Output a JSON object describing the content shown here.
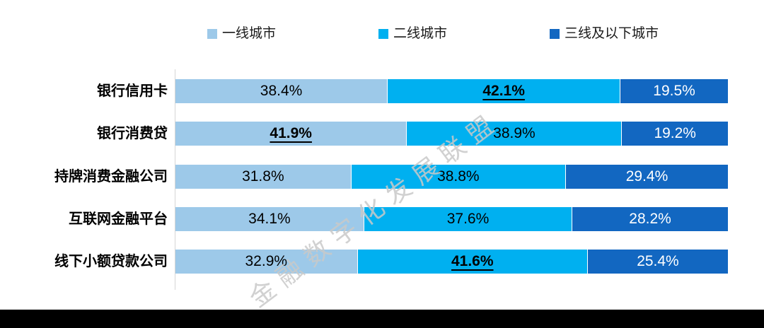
{
  "page": {
    "background": "#ffffff",
    "bottom_bar_color": "#000000",
    "axis_line_color": "#d6d6d6",
    "watermark_color": "#c9c9c9"
  },
  "legend": {
    "items": [
      {
        "label": "一线城市",
        "color": "#9DC9E9"
      },
      {
        "label": "二线城市",
        "color": "#00B0F0"
      },
      {
        "label": "三线及以下城市",
        "color": "#1267C1"
      }
    ]
  },
  "watermark": {
    "text": "金融数字化发展联盟"
  },
  "chart_data": {
    "type": "bar",
    "orientation": "horizontal",
    "stacking": "100%",
    "value_suffix": "%",
    "xlim": [
      0,
      100
    ],
    "grid": false,
    "legend_position": "top",
    "categories": [
      "银行信用卡",
      "银行消费贷",
      "持牌消费金融公司",
      "互联网金融平台",
      "线下小额贷款公司"
    ],
    "series": [
      {
        "name": "一线城市",
        "color": "#9DC9E9",
        "values": [
          38.4,
          41.9,
          31.8,
          34.1,
          32.9
        ]
      },
      {
        "name": "二线城市",
        "color": "#00B0F0",
        "values": [
          42.1,
          38.9,
          38.8,
          37.6,
          41.6
        ]
      },
      {
        "name": "三线及以下城市",
        "color": "#1267C1",
        "values": [
          19.5,
          19.2,
          29.4,
          28.2,
          25.4
        ]
      }
    ],
    "rows": [
      {
        "category": "银行信用卡",
        "segments": [
          {
            "label": "38.4%",
            "value": 38.4,
            "emphasis": false
          },
          {
            "label": "42.1%",
            "value": 42.1,
            "emphasis": true
          },
          {
            "label": "19.5%",
            "value": 19.5,
            "emphasis": false
          }
        ]
      },
      {
        "category": "银行消费贷",
        "segments": [
          {
            "label": "41.9%",
            "value": 41.9,
            "emphasis": true
          },
          {
            "label": "38.9%",
            "value": 38.9,
            "emphasis": false
          },
          {
            "label": "19.2%",
            "value": 19.2,
            "emphasis": false
          }
        ]
      },
      {
        "category": "持牌消费金融公司",
        "segments": [
          {
            "label": "31.8%",
            "value": 31.8,
            "emphasis": false
          },
          {
            "label": "38.8%",
            "value": 38.8,
            "emphasis": false
          },
          {
            "label": "29.4%",
            "value": 29.4,
            "emphasis": false
          }
        ]
      },
      {
        "category": "互联网金融平台",
        "segments": [
          {
            "label": "34.1%",
            "value": 34.1,
            "emphasis": false
          },
          {
            "label": "37.6%",
            "value": 37.6,
            "emphasis": false
          },
          {
            "label": "28.2%",
            "value": 28.2,
            "emphasis": false
          }
        ]
      },
      {
        "category": "线下小额贷款公司",
        "segments": [
          {
            "label": "32.9%",
            "value": 32.9,
            "emphasis": false
          },
          {
            "label": "41.6%",
            "value": 41.6,
            "emphasis": true
          },
          {
            "label": "25.4%",
            "value": 25.4,
            "emphasis": false
          }
        ]
      }
    ]
  }
}
